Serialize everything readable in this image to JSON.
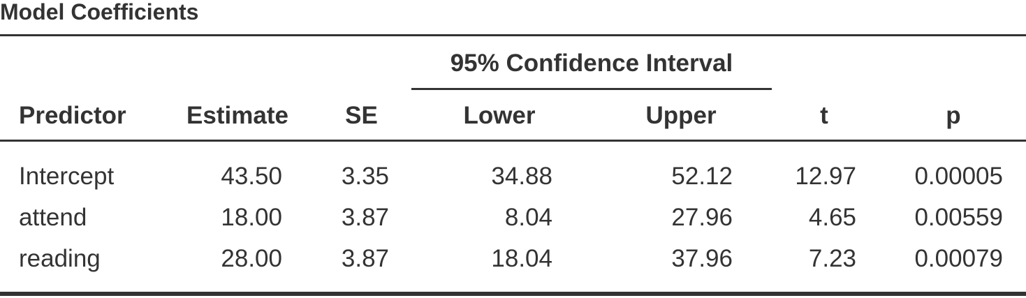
{
  "title": "Model Coefficients",
  "group_header": "95% Confidence Interval",
  "columns": {
    "predictor": "Predictor",
    "estimate": "Estimate",
    "se": "SE",
    "lower": "Lower",
    "upper": "Upper",
    "t": "t",
    "p": "p"
  },
  "rows": [
    {
      "predictor": "Intercept",
      "estimate": "43.50",
      "se": "3.35",
      "lower": "34.88",
      "upper": "52.12",
      "t": "12.97",
      "p": "0.00005"
    },
    {
      "predictor": "attend",
      "estimate": "18.00",
      "se": "3.87",
      "lower": "8.04",
      "upper": "27.96",
      "t": "4.65",
      "p": "0.00559"
    },
    {
      "predictor": "reading",
      "estimate": "28.00",
      "se": "3.87",
      "lower": "18.04",
      "upper": "37.96",
      "t": "7.23",
      "p": "0.00079"
    }
  ]
}
